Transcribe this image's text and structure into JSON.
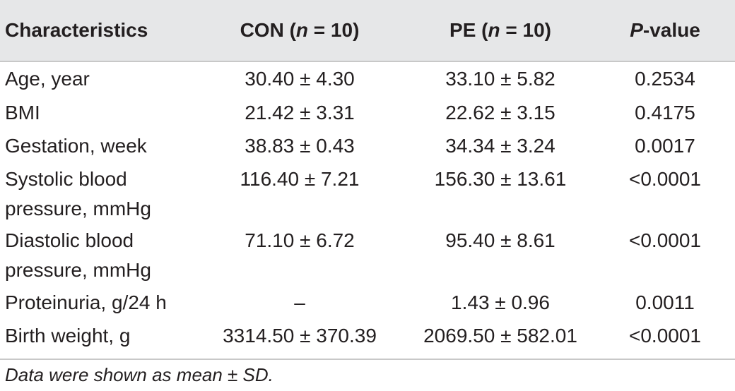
{
  "table": {
    "headers": {
      "characteristics": "Characteristics",
      "con_prefix": "CON (",
      "con_n": "n",
      "con_suffix": " = 10)",
      "pe_prefix": "PE (",
      "pe_n": "n",
      "pe_suffix": " = 10)",
      "p_italic": "P",
      "p_suffix": "-value"
    },
    "rows": [
      {
        "label": "Age, year",
        "con": "30.40 ± 4.30",
        "pe": "33.10 ± 5.82",
        "p": "0.2534"
      },
      {
        "label": "BMI",
        "con": "21.42 ± 3.31",
        "pe": "22.62 ± 3.15",
        "p": "0.4175"
      },
      {
        "label": "Gestation, week",
        "con": "38.83 ± 0.43",
        "pe": "34.34 ± 3.24",
        "p": "0.0017"
      },
      {
        "label_line1": "Systolic blood",
        "label_line2": "pressure, mmHg",
        "con": "116.40 ± 7.21",
        "pe": "156.30 ± 13.61",
        "p": "<0.0001"
      },
      {
        "label_line1": "Diastolic blood",
        "label_line2": "pressure, mmHg",
        "con": "71.10 ± 6.72",
        "pe": "95.40 ± 8.61",
        "p": "<0.0001"
      },
      {
        "label": "Proteinuria, g/24 h",
        "con": "–",
        "pe": "1.43 ± 0.96",
        "p": "0.0011"
      },
      {
        "label": "Birth weight, g",
        "con": "3314.50 ± 370.39",
        "pe": "2069.50 ± 582.01",
        "p": "<0.0001"
      }
    ],
    "footnote": "Data were shown as mean ± SD."
  }
}
